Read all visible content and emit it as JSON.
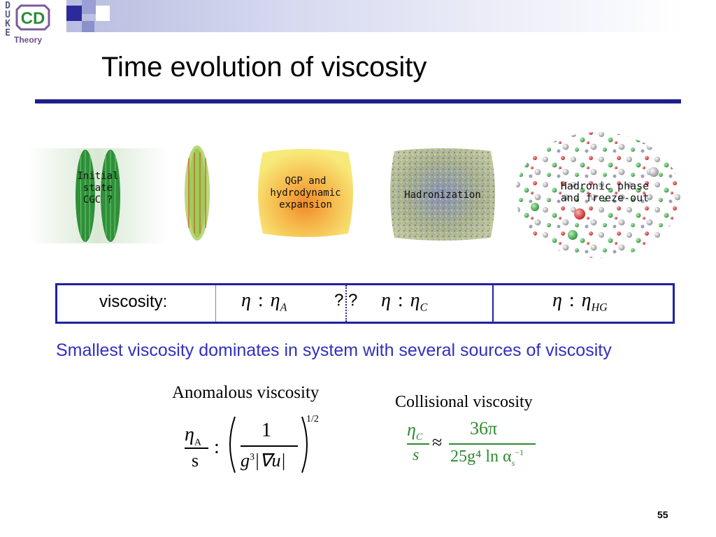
{
  "logo": {
    "letters": [
      "D",
      "U",
      "K",
      "E"
    ],
    "mark": "CD",
    "subtitle": "Theory"
  },
  "title": "Time evolution of viscosity",
  "stages": {
    "initial": "Initial\nstate\nCGC ?",
    "qgp": "QGP and\nhydrodynamic\nexpansion",
    "hadronization": "Hadronization",
    "hadronic": "Hadronic phase\nand freeze-out"
  },
  "viscosity_row": {
    "label": "viscosity:",
    "eta": "η",
    "sim": ":",
    "sub_a": "A",
    "sub_c": "C",
    "sub_hg": "HG",
    "unknown": "? ?"
  },
  "statement": "Smallest viscosity dominates in system with several sources of viscosity",
  "anomalous": {
    "title": "Anomalous viscosity",
    "lhs_num": "η",
    "lhs_sub": "A",
    "lhs_den": "s",
    "relation": ":",
    "frac_num": "1",
    "frac_den_g": "g",
    "frac_den_exp": "3",
    "frac_den_grad": "|∇u|",
    "power": "1/2"
  },
  "collisional": {
    "title": "Collisional viscosity",
    "lhs_num": "η",
    "lhs_sub": "C",
    "lhs_den": "s",
    "relation": "≈",
    "num": "36π",
    "den": "25g⁴ ln α",
    "den_sub": "s",
    "den_sup": "−1"
  },
  "page_number": "55",
  "colors": {
    "title_rule": "#1f1f8a",
    "statement": "#3030c0",
    "formula_green": "#2e8b2e",
    "box_border": "#2020a0"
  }
}
